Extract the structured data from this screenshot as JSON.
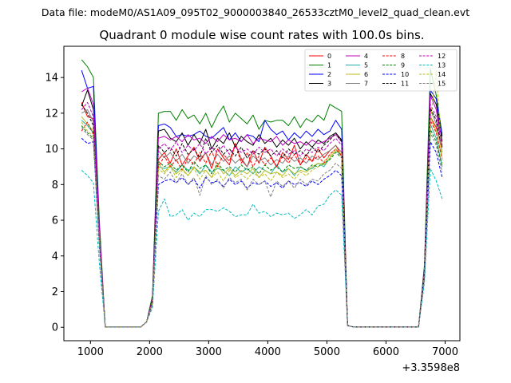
{
  "figure": {
    "suptitle": "Data file: modeM0/AS1A09_095T02_9000003840_26533cztM0_level2_quad_clean.evt"
  },
  "chart_data": {
    "type": "line",
    "title": "Quadrant 0 module wise count rates with 100.0s bins.",
    "xlabel": "",
    "ylabel": "",
    "x_offset_label": "+3.3598e8",
    "xlim": [
      550,
      7250
    ],
    "ylim": [
      -0.75,
      15.75
    ],
    "xticks": [
      1000,
      2000,
      3000,
      4000,
      5000,
      6000,
      7000
    ],
    "yticks": [
      0,
      2,
      4,
      6,
      8,
      10,
      12,
      14
    ],
    "grid": false,
    "legend_position": "top-right",
    "legend_columns": 4,
    "x": [
      850,
      950,
      1050,
      1150,
      1250,
      1350,
      1450,
      1550,
      1650,
      1750,
      1850,
      1950,
      2050,
      2150,
      2250,
      2350,
      2450,
      2550,
      2650,
      2750,
      2850,
      2950,
      3050,
      3150,
      3250,
      3350,
      3450,
      3550,
      3650,
      3750,
      3850,
      3950,
      4050,
      4150,
      4250,
      4350,
      4450,
      4550,
      4650,
      4750,
      4850,
      4950,
      5050,
      5150,
      5250,
      5350,
      5450,
      5550,
      5650,
      5750,
      5850,
      5950,
      6050,
      6150,
      6250,
      6350,
      6450,
      6550,
      6650,
      6750,
      6850,
      6950
    ],
    "series": [
      {
        "name": "0",
        "color": "#ff0000",
        "dash": "solid",
        "values": [
          12.6,
          11.8,
          11.7,
          5.0,
          0.02,
          0.02,
          0.02,
          0.02,
          0.02,
          0.02,
          0.02,
          0.3,
          1.5,
          9.4,
          9.8,
          9.2,
          10.0,
          9.1,
          9.6,
          10.1,
          9.3,
          9.8,
          8.9,
          10.0,
          9.5,
          9.1,
          10.3,
          9.4,
          9.0,
          9.9,
          9.2,
          10.1,
          9.6,
          9.0,
          9.8,
          9.4,
          10.2,
          9.1,
          9.7,
          9.3,
          10.0,
          9.5,
          9.9,
          10.2,
          9.6,
          0.1,
          0.02,
          0.02,
          0.02,
          0.02,
          0.02,
          0.02,
          0.02,
          0.02,
          0.02,
          0.02,
          0.02,
          0.02,
          3.0,
          11.8,
          11.2,
          10.1
        ]
      },
      {
        "name": "1",
        "color": "#008000",
        "dash": "solid",
        "values": [
          15.0,
          14.6,
          14.0,
          6.0,
          0.02,
          0.02,
          0.02,
          0.02,
          0.02,
          0.02,
          0.02,
          0.3,
          1.8,
          12.0,
          12.1,
          12.1,
          11.6,
          12.2,
          11.7,
          11.9,
          11.4,
          12.0,
          11.2,
          11.9,
          12.4,
          11.5,
          12.0,
          11.7,
          11.4,
          11.9,
          11.1,
          11.6,
          11.5,
          11.6,
          11.6,
          11.3,
          11.8,
          11.2,
          11.7,
          11.5,
          11.9,
          11.6,
          12.5,
          12.3,
          12.1,
          0.1,
          0.02,
          0.02,
          0.02,
          0.02,
          0.02,
          0.02,
          0.02,
          0.02,
          0.02,
          0.02,
          0.02,
          0.02,
          3.5,
          14.5,
          13.0,
          10.8
        ]
      },
      {
        "name": "2",
        "color": "#0000ff",
        "dash": "solid",
        "values": [
          14.4,
          13.4,
          13.5,
          5.6,
          0.02,
          0.02,
          0.02,
          0.02,
          0.02,
          0.02,
          0.02,
          0.3,
          1.6,
          11.3,
          11.4,
          11.2,
          10.7,
          10.8,
          10.7,
          10.8,
          11.0,
          10.7,
          10.6,
          10.9,
          11.2,
          10.5,
          10.9,
          10.4,
          10.8,
          10.7,
          10.4,
          11.6,
          11.1,
          10.8,
          11.0,
          10.5,
          10.9,
          10.6,
          11.0,
          10.7,
          11.1,
          10.8,
          11.0,
          11.6,
          11.1,
          0.1,
          0.02,
          0.02,
          0.02,
          0.02,
          0.02,
          0.02,
          0.02,
          0.02,
          0.02,
          0.02,
          0.02,
          0.02,
          3.3,
          13.3,
          12.8,
          10.7
        ]
      },
      {
        "name": "3",
        "color": "#000000",
        "dash": "solid",
        "values": [
          12.4,
          13.3,
          12.2,
          5.4,
          0.02,
          0.02,
          0.02,
          0.02,
          0.02,
          0.02,
          0.02,
          0.3,
          1.6,
          11.0,
          11.1,
          10.6,
          10.4,
          10.9,
          10.2,
          10.8,
          10.3,
          11.1,
          10.0,
          10.6,
          10.3,
          10.9,
          10.1,
          10.7,
          10.4,
          10.2,
          10.8,
          10.3,
          10.6,
          10.1,
          10.5,
          10.2,
          10.6,
          10.0,
          10.4,
          10.1,
          10.5,
          10.3,
          10.7,
          10.9,
          10.5,
          0.1,
          0.02,
          0.02,
          0.02,
          0.02,
          0.02,
          0.02,
          0.02,
          0.02,
          0.02,
          0.02,
          0.02,
          0.02,
          3.2,
          13.1,
          12.5,
          10.4
        ]
      },
      {
        "name": "4",
        "color": "#c000c0",
        "dash": "solid",
        "values": [
          13.2,
          13.4,
          12.5,
          5.5,
          0.02,
          0.02,
          0.02,
          0.02,
          0.02,
          0.02,
          0.02,
          0.3,
          1.6,
          10.6,
          10.7,
          10.5,
          10.7,
          10.4,
          10.8,
          10.5,
          10.6,
          10.3,
          10.7,
          10.4,
          10.8,
          10.5,
          10.6,
          10.4,
          10.8,
          10.3,
          10.6,
          10.5,
          10.4,
          10.7,
          10.2,
          10.5,
          10.3,
          10.4,
          10.2,
          10.5,
          10.3,
          10.4,
          10.6,
          10.8,
          10.4,
          0.1,
          0.02,
          0.02,
          0.02,
          0.02,
          0.02,
          0.02,
          0.02,
          0.02,
          0.02,
          0.02,
          0.02,
          0.02,
          3.2,
          13.0,
          12.2,
          10.1
        ]
      },
      {
        "name": "5",
        "color": "#20b2aa",
        "dash": "solid",
        "values": [
          11.6,
          11.3,
          10.9,
          4.8,
          0.02,
          0.02,
          0.02,
          0.02,
          0.02,
          0.02,
          0.02,
          0.3,
          1.4,
          9.0,
          8.9,
          9.0,
          8.7,
          9.1,
          8.8,
          9.0,
          8.6,
          9.1,
          8.7,
          8.9,
          8.8,
          8.5,
          9.0,
          8.7,
          8.9,
          8.6,
          9.0,
          8.8,
          8.6,
          9.1,
          8.7,
          8.9,
          8.5,
          9.0,
          8.8,
          8.9,
          9.2,
          9.0,
          9.5,
          9.9,
          9.6,
          0.1,
          0.02,
          0.02,
          0.02,
          0.02,
          0.02,
          0.02,
          0.02,
          0.02,
          0.02,
          0.02,
          0.02,
          0.02,
          3.0,
          11.4,
          10.6,
          9.0
        ]
      },
      {
        "name": "6",
        "color": "#bcbd22",
        "dash": "solid",
        "values": [
          11.8,
          11.4,
          11.0,
          4.9,
          0.02,
          0.02,
          0.02,
          0.02,
          0.02,
          0.02,
          0.02,
          0.3,
          1.4,
          9.2,
          8.7,
          9.1,
          8.6,
          8.9,
          8.5,
          9.0,
          8.7,
          8.8,
          8.4,
          9.1,
          8.6,
          8.9,
          8.5,
          8.8,
          8.6,
          8.9,
          8.4,
          8.8,
          8.6,
          8.7,
          8.5,
          8.9,
          8.6,
          8.8,
          8.7,
          9.0,
          9.2,
          9.1,
          9.5,
          9.9,
          9.7,
          0.1,
          0.02,
          0.02,
          0.02,
          0.02,
          0.02,
          0.02,
          0.02,
          0.02,
          0.02,
          0.02,
          0.02,
          0.02,
          3.0,
          11.8,
          11.0,
          9.5
        ]
      },
      {
        "name": "7",
        "color": "#808080",
        "dash": "solid",
        "values": [
          12.0,
          12.2,
          11.5,
          5.1,
          0.02,
          0.02,
          0.02,
          0.02,
          0.02,
          0.02,
          0.02,
          0.3,
          1.5,
          9.9,
          9.5,
          9.8,
          9.3,
          9.7,
          9.2,
          9.6,
          9.4,
          9.8,
          9.1,
          9.7,
          9.3,
          9.6,
          9.2,
          9.5,
          9.0,
          9.6,
          9.3,
          9.5,
          9.1,
          9.4,
          9.2,
          9.6,
          9.3,
          9.5,
          9.2,
          9.6,
          9.4,
          9.7,
          9.9,
          10.2,
          9.8,
          0.1,
          0.02,
          0.02,
          0.02,
          0.02,
          0.02,
          0.02,
          0.02,
          0.02,
          0.02,
          0.02,
          0.02,
          0.02,
          3.1,
          12.2,
          11.4,
          9.8
        ]
      },
      {
        "name": "8",
        "color": "#ff0000",
        "dash": "dashed",
        "values": [
          11.0,
          11.5,
          10.8,
          4.8,
          0.02,
          0.02,
          0.02,
          0.02,
          0.02,
          0.02,
          0.02,
          0.3,
          1.4,
          9.0,
          9.6,
          9.0,
          9.4,
          8.8,
          9.5,
          9.1,
          9.8,
          9.2,
          9.9,
          9.0,
          9.7,
          9.3,
          10.3,
          9.2,
          9.8,
          9.0,
          9.6,
          9.1,
          9.5,
          9.0,
          9.6,
          9.2,
          9.7,
          9.1,
          9.5,
          9.3,
          9.6,
          9.2,
          9.7,
          10.0,
          9.6,
          0.1,
          0.02,
          0.02,
          0.02,
          0.02,
          0.02,
          0.02,
          0.02,
          0.02,
          0.02,
          0.02,
          0.02,
          0.02,
          3.0,
          11.6,
          10.9,
          9.4
        ]
      },
      {
        "name": "9",
        "color": "#008000",
        "dash": "dashed",
        "values": [
          11.3,
          10.9,
          10.6,
          4.7,
          0.02,
          0.02,
          0.02,
          0.02,
          0.02,
          0.02,
          0.02,
          0.3,
          1.4,
          9.3,
          9.0,
          9.2,
          8.8,
          9.1,
          8.7,
          9.3,
          8.9,
          9.1,
          8.6,
          9.2,
          8.8,
          9.0,
          8.7,
          9.1,
          8.8,
          9.0,
          8.6,
          9.1,
          8.8,
          9.0,
          8.7,
          9.1,
          8.9,
          9.0,
          8.8,
          9.1,
          9.0,
          9.2,
          9.4,
          9.8,
          9.5,
          0.1,
          0.02,
          0.02,
          0.02,
          0.02,
          0.02,
          0.02,
          0.02,
          0.02,
          0.02,
          0.02,
          0.02,
          0.02,
          3.0,
          11.1,
          10.4,
          9.0
        ]
      },
      {
        "name": "10",
        "color": "#0000ff",
        "dash": "dashed",
        "values": [
          10.6,
          10.3,
          10.4,
          4.6,
          0.02,
          0.02,
          0.02,
          0.02,
          0.02,
          0.02,
          0.02,
          0.3,
          1.3,
          8.0,
          8.2,
          8.3,
          8.1,
          8.4,
          8.0,
          8.3,
          7.8,
          8.4,
          8.1,
          8.2,
          7.9,
          8.3,
          8.0,
          8.2,
          7.8,
          8.1,
          8.0,
          8.2,
          7.9,
          8.1,
          7.8,
          8.2,
          8.0,
          8.1,
          7.9,
          8.2,
          8.0,
          8.3,
          8.5,
          8.8,
          8.5,
          0.1,
          0.02,
          0.02,
          0.02,
          0.02,
          0.02,
          0.02,
          0.02,
          0.02,
          0.02,
          0.02,
          0.02,
          0.02,
          2.8,
          10.4,
          9.8,
          8.4
        ]
      },
      {
        "name": "11",
        "color": "#000000",
        "dash": "dashed",
        "values": [
          12.5,
          12.0,
          11.3,
          5.0,
          0.02,
          0.02,
          0.02,
          0.02,
          0.02,
          0.02,
          0.02,
          0.3,
          1.5,
          10.2,
          9.8,
          10.1,
          9.6,
          10.3,
          9.7,
          10.0,
          9.5,
          10.6,
          9.8,
          10.2,
          9.7,
          10.0,
          9.6,
          10.1,
          9.5,
          9.9,
          9.7,
          10.0,
          9.6,
          9.9,
          9.5,
          10.0,
          9.7,
          9.9,
          9.6,
          10.1,
          9.8,
          10.2,
          10.5,
          10.9,
          10.4,
          0.1,
          0.02,
          0.02,
          0.02,
          0.02,
          0.02,
          0.02,
          0.02,
          0.02,
          0.02,
          0.02,
          0.02,
          0.02,
          3.1,
          12.3,
          11.6,
          10.0
        ]
      },
      {
        "name": "12",
        "color": "#c000c0",
        "dash": "dashed",
        "values": [
          12.2,
          12.6,
          11.8,
          5.2,
          0.02,
          0.02,
          0.02,
          0.02,
          0.02,
          0.02,
          0.02,
          0.3,
          1.5,
          10.0,
          10.3,
          9.9,
          10.4,
          9.8,
          10.2,
          9.9,
          10.3,
          9.7,
          10.1,
          9.8,
          10.2,
          9.7,
          10.1,
          9.8,
          10.0,
          9.7,
          10.1,
          9.8,
          10.0,
          9.6,
          10.0,
          9.7,
          9.9,
          9.6,
          10.0,
          9.8,
          10.1,
          9.9,
          10.3,
          10.6,
          10.2,
          0.1,
          0.02,
          0.02,
          0.02,
          0.02,
          0.02,
          0.02,
          0.02,
          0.02,
          0.02,
          0.02,
          0.02,
          0.02,
          3.1,
          12.5,
          11.8,
          10.2
        ]
      },
      {
        "name": "13",
        "color": "#00bfbf",
        "dash": "dashed",
        "values": [
          8.8,
          8.5,
          8.1,
          3.6,
          0.02,
          0.02,
          0.02,
          0.02,
          0.02,
          0.02,
          0.02,
          0.3,
          1.1,
          6.5,
          7.2,
          6.2,
          6.3,
          6.6,
          6.0,
          6.4,
          6.2,
          6.6,
          6.6,
          6.5,
          6.7,
          6.5,
          6.2,
          6.3,
          6.3,
          6.9,
          6.4,
          6.5,
          6.2,
          6.4,
          6.3,
          6.4,
          6.1,
          6.3,
          6.6,
          6.3,
          6.8,
          6.9,
          7.4,
          7.7,
          7.4,
          0.1,
          0.02,
          0.02,
          0.02,
          0.02,
          0.02,
          0.02,
          0.02,
          0.02,
          0.02,
          0.02,
          0.02,
          0.02,
          2.5,
          8.9,
          8.2,
          7.2
        ]
      },
      {
        "name": "14",
        "color": "#bcbd22",
        "dash": "dashed",
        "values": [
          11.5,
          11.0,
          10.7,
          4.8,
          0.02,
          0.02,
          0.02,
          0.02,
          0.02,
          0.02,
          0.02,
          0.3,
          1.4,
          8.9,
          8.6,
          9.0,
          8.4,
          8.8,
          8.5,
          8.9,
          8.3,
          8.8,
          8.4,
          8.7,
          8.2,
          8.8,
          8.4,
          8.6,
          8.3,
          8.7,
          8.4,
          8.6,
          8.2,
          8.7,
          8.4,
          8.6,
          8.3,
          8.7,
          8.5,
          8.8,
          9.0,
          9.3,
          9.6,
          10.0,
          9.7,
          0.1,
          0.02,
          0.02,
          0.02,
          0.02,
          0.02,
          0.02,
          0.02,
          0.02,
          0.02,
          0.02,
          0.02,
          0.02,
          3.0,
          11.5,
          14.4,
          9.2
        ]
      },
      {
        "name": "15",
        "color": "#808080",
        "dash": "dashed",
        "values": [
          11.2,
          10.8,
          10.5,
          4.7,
          0.02,
          0.02,
          0.02,
          0.02,
          0.02,
          0.02,
          0.02,
          0.3,
          1.3,
          8.5,
          8.3,
          8.7,
          8.1,
          8.6,
          8.0,
          8.4,
          7.4,
          8.5,
          8.0,
          8.3,
          7.8,
          8.4,
          8.1,
          8.3,
          7.7,
          8.3,
          8.0,
          8.2,
          7.3,
          8.2,
          7.9,
          8.2,
          7.8,
          8.3,
          8.0,
          8.3,
          8.2,
          8.6,
          8.8,
          9.2,
          8.9,
          0.1,
          0.02,
          0.02,
          0.02,
          0.02,
          0.02,
          0.02,
          0.02,
          0.02,
          0.02,
          0.02,
          0.02,
          0.02,
          2.9,
          10.9,
          10.2,
          8.7
        ]
      }
    ]
  }
}
